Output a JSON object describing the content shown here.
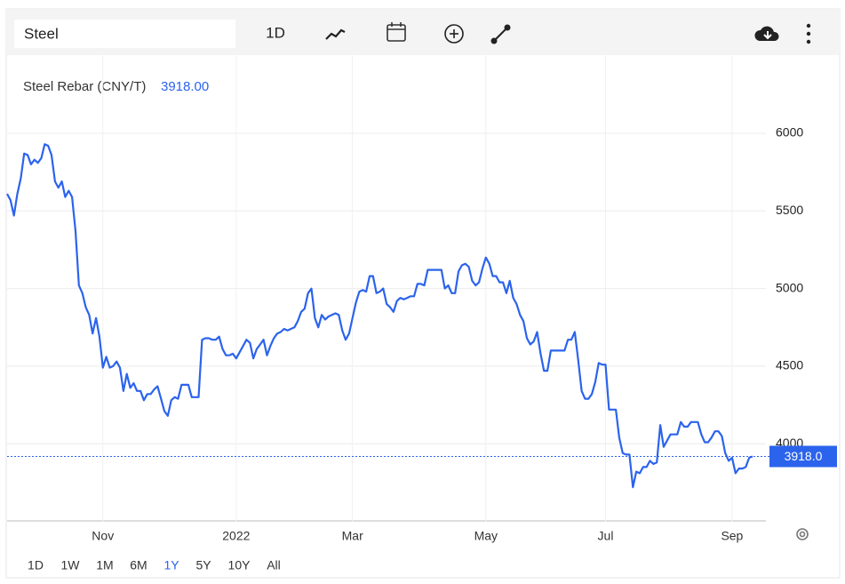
{
  "ui": {
    "search": "Steel",
    "interval": "1D",
    "ranges": [
      "1D",
      "1W",
      "1M",
      "6M",
      "1Y",
      "5Y",
      "10Y",
      "All"
    ],
    "active_range": 4
  },
  "chart_data": {
    "type": "line",
    "legend_value": "3918.00",
    "last_label": "3918.0",
    "ylim": [
      3500,
      6500
    ],
    "yticks": [
      4000,
      4500,
      5000,
      5500,
      6000
    ],
    "grid": true,
    "categories": [
      null,
      null,
      null,
      null,
      null,
      null,
      null,
      null,
      null,
      null,
      null,
      null,
      null,
      null,
      null,
      null,
      null,
      null,
      null,
      null,
      null,
      null,
      null,
      null,
      null,
      null,
      null,
      null,
      "Nov",
      null,
      null,
      null,
      null,
      null,
      null,
      null,
      null,
      null,
      null,
      null,
      null,
      null,
      null,
      null,
      null,
      null,
      null,
      null,
      null,
      null,
      null,
      null,
      null,
      null,
      null,
      null,
      null,
      null,
      null,
      null,
      null,
      null,
      null,
      null,
      null,
      null,
      null,
      "2022",
      null,
      null,
      null,
      null,
      null,
      null,
      null,
      null,
      null,
      null,
      null,
      null,
      null,
      null,
      null,
      null,
      null,
      null,
      null,
      null,
      null,
      null,
      null,
      null,
      null,
      null,
      null,
      null,
      null,
      null,
      null,
      null,
      null,
      "Mar",
      null,
      null,
      null,
      null,
      null,
      null,
      null,
      null,
      null,
      null,
      null,
      null,
      null,
      null,
      null,
      null,
      null,
      null,
      null,
      null,
      null,
      null,
      null,
      null,
      null,
      null,
      null,
      null,
      null,
      null,
      null,
      null,
      null,
      null,
      null,
      null,
      null,
      null,
      "May",
      null,
      null,
      null,
      null,
      null,
      null,
      null,
      null,
      null,
      null,
      null,
      null,
      null,
      null,
      null,
      null,
      null,
      null,
      null,
      null,
      null,
      null,
      null,
      null,
      null,
      null,
      null,
      null,
      null,
      null,
      null,
      null,
      null,
      null,
      "Jul",
      null,
      null,
      null,
      null,
      null,
      null,
      null,
      null,
      null,
      null,
      null,
      null,
      null,
      null,
      null,
      null,
      null,
      null,
      null,
      null,
      null,
      null,
      null,
      null,
      null,
      null,
      null,
      null,
      null,
      null,
      null,
      null,
      null,
      null,
      null,
      null,
      "Sep",
      null,
      null,
      null,
      null,
      null,
      null
    ],
    "series": [
      {
        "name": "Steel Rebar (CNY/T)",
        "color": "#2b63ec",
        "values": [
          5610,
          5570,
          5470,
          5610,
          5710,
          5870,
          5860,
          5800,
          5830,
          5810,
          5840,
          5930,
          5920,
          5860,
          5690,
          5650,
          5690,
          5590,
          5630,
          5590,
          5370,
          5020,
          4970,
          4880,
          4830,
          4710,
          4810,
          4690,
          4490,
          4560,
          4490,
          4500,
          4530,
          4490,
          4340,
          4450,
          4360,
          4390,
          4340,
          4340,
          4280,
          4320,
          4320,
          4350,
          4370,
          4290,
          4210,
          4180,
          4280,
          4300,
          4290,
          4380,
          4380,
          4380,
          4300,
          4300,
          4300,
          4670,
          4680,
          4680,
          4670,
          4670,
          4690,
          4610,
          4570,
          4570,
          4580,
          4550,
          4590,
          4630,
          4670,
          4650,
          4550,
          4610,
          4640,
          4670,
          4570,
          4630,
          4680,
          4710,
          4720,
          4740,
          4730,
          4740,
          4750,
          4790,
          4850,
          4870,
          4970,
          5000,
          4810,
          4750,
          4830,
          4800,
          4820,
          4830,
          4840,
          4830,
          4730,
          4670,
          4710,
          4810,
          4910,
          4980,
          4990,
          4980,
          5080,
          5080,
          4970,
          4980,
          5000,
          4900,
          4880,
          4850,
          4920,
          4940,
          4930,
          4940,
          4950,
          4950,
          5030,
          5030,
          5020,
          5120,
          5120,
          5120,
          5120,
          5120,
          5000,
          5020,
          4970,
          4970,
          5110,
          5150,
          5160,
          5140,
          5050,
          5020,
          5040,
          5130,
          5200,
          5160,
          5080,
          5080,
          5040,
          5040,
          4970,
          5050,
          4940,
          4900,
          4830,
          4790,
          4680,
          4640,
          4660,
          4720,
          4580,
          4470,
          4470,
          4600,
          4600,
          4600,
          4600,
          4600,
          4670,
          4670,
          4720,
          4540,
          4340,
          4290,
          4290,
          4320,
          4400,
          4520,
          4510,
          4510,
          4220,
          4220,
          4220,
          4040,
          3940,
          3930,
          3930,
          3720,
          3820,
          3810,
          3850,
          3850,
          3890,
          3870,
          3880,
          4120,
          3980,
          4020,
          4060,
          4060,
          4060,
          4140,
          4110,
          4110,
          4140,
          4140,
          4140,
          4060,
          4010,
          4010,
          4040,
          4080,
          4080,
          4050,
          3940,
          3890,
          3910,
          3810,
          3840,
          3840,
          3850,
          3910,
          3918
        ]
      }
    ]
  }
}
